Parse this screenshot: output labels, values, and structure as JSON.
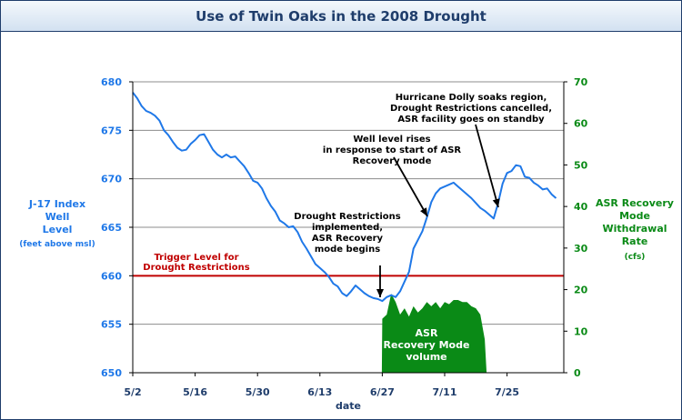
{
  "chart_data": {
    "type": "line",
    "title": "Use of Twin Oaks in the 2008 Drought",
    "xlabel": "date",
    "ylabel_left": [
      "J-17 Index",
      "Well",
      "Level"
    ],
    "ylabel_left_sub": "(feet above msl)",
    "ylabel_right": [
      "ASR Recovery",
      "Mode",
      "Withdrawal",
      "Rate"
    ],
    "ylabel_right_sub": "(cfs)",
    "ylim_left": [
      650,
      680
    ],
    "ylim_right": [
      0,
      70
    ],
    "x_ticks": [
      {
        "day": 0,
        "label": "5/2"
      },
      {
        "day": 14,
        "label": "5/16"
      },
      {
        "day": 28,
        "label": "5/30"
      },
      {
        "day": 42,
        "label": "6/13"
      },
      {
        "day": 56,
        "label": "6/27"
      },
      {
        "day": 70,
        "label": "7/11"
      },
      {
        "day": 84,
        "label": "7/25"
      }
    ],
    "y_ticks_left": [
      650,
      655,
      660,
      665,
      670,
      675,
      680
    ],
    "y_ticks_right": [
      0,
      10,
      20,
      30,
      40,
      50,
      60,
      70
    ],
    "trigger_level": {
      "value": 660,
      "label": [
        "Trigger Level for",
        "Drought Restrictions"
      ],
      "color": "#c00000"
    },
    "well_level": {
      "color": "#1f78e8",
      "points": [
        [
          0,
          678.9
        ],
        [
          1,
          678.3
        ],
        [
          2,
          677.5
        ],
        [
          3,
          677.0
        ],
        [
          4,
          676.8
        ],
        [
          5,
          676.5
        ],
        [
          6,
          676.0
        ],
        [
          7,
          675.0
        ],
        [
          8,
          674.5
        ],
        [
          9,
          673.8
        ],
        [
          10,
          673.2
        ],
        [
          11,
          672.9
        ],
        [
          12,
          673.0
        ],
        [
          13,
          673.6
        ],
        [
          14,
          674.0
        ],
        [
          15,
          674.5
        ],
        [
          16,
          674.6
        ],
        [
          17,
          673.8
        ],
        [
          18,
          673.0
        ],
        [
          19,
          672.5
        ],
        [
          20,
          672.2
        ],
        [
          21,
          672.5
        ],
        [
          22,
          672.2
        ],
        [
          23,
          672.3
        ],
        [
          24,
          671.8
        ],
        [
          25,
          671.3
        ],
        [
          26,
          670.6
        ],
        [
          27,
          669.8
        ],
        [
          28,
          669.6
        ],
        [
          29,
          669.0
        ],
        [
          30,
          668.0
        ],
        [
          31,
          667.2
        ],
        [
          32,
          666.6
        ],
        [
          33,
          665.7
        ],
        [
          34,
          665.4
        ],
        [
          35,
          665.0
        ],
        [
          36,
          665.1
        ],
        [
          37,
          664.5
        ],
        [
          38,
          663.5
        ],
        [
          39,
          662.8
        ],
        [
          40,
          662.0
        ],
        [
          41,
          661.2
        ],
        [
          42,
          660.8
        ],
        [
          43,
          660.4
        ],
        [
          44,
          659.9
        ],
        [
          45,
          659.2
        ],
        [
          46,
          658.9
        ],
        [
          47,
          658.2
        ],
        [
          48,
          657.9
        ],
        [
          49,
          658.4
        ],
        [
          50,
          659.0
        ],
        [
          51,
          658.6
        ],
        [
          52,
          658.2
        ],
        [
          53,
          657.9
        ],
        [
          54,
          657.7
        ],
        [
          55,
          657.6
        ],
        [
          56,
          657.4
        ],
        [
          57,
          657.8
        ],
        [
          58,
          658.0
        ],
        [
          59,
          657.8
        ],
        [
          60,
          658.4
        ],
        [
          61,
          659.4
        ],
        [
          62,
          660.4
        ],
        [
          63,
          662.8
        ],
        [
          64,
          663.7
        ],
        [
          65,
          664.6
        ],
        [
          66,
          666.0
        ],
        [
          67,
          667.6
        ],
        [
          68,
          668.5
        ],
        [
          69,
          669.0
        ],
        [
          70,
          669.2
        ],
        [
          71,
          669.4
        ],
        [
          72,
          669.6
        ],
        [
          73,
          669.2
        ],
        [
          74,
          668.8
        ],
        [
          75,
          668.4
        ],
        [
          76,
          668.0
        ],
        [
          77,
          667.5
        ],
        [
          78,
          667.0
        ],
        [
          79,
          666.7
        ],
        [
          80,
          666.3
        ],
        [
          81,
          665.9
        ],
        [
          82,
          667.5
        ],
        [
          83,
          669.5
        ],
        [
          84,
          670.6
        ],
        [
          85,
          670.8
        ],
        [
          86,
          671.4
        ],
        [
          87,
          671.3
        ],
        [
          88,
          670.2
        ],
        [
          89,
          670.1
        ],
        [
          90,
          669.6
        ],
        [
          91,
          669.3
        ],
        [
          92,
          668.9
        ],
        [
          93,
          669.0
        ],
        [
          94,
          668.4
        ],
        [
          95,
          668.0
        ]
      ]
    },
    "asr_withdrawal": {
      "color": "#0a8a16",
      "label": [
        "ASR",
        "Recovery Mode",
        "volume"
      ],
      "points": [
        [
          55.9,
          0
        ],
        [
          56,
          13
        ],
        [
          57,
          14
        ],
        [
          58,
          19
        ],
        [
          59,
          17
        ],
        [
          60,
          14
        ],
        [
          61,
          15.5
        ],
        [
          62,
          13.5
        ],
        [
          63,
          16
        ],
        [
          64,
          14.5
        ],
        [
          65,
          15.5
        ],
        [
          66,
          17
        ],
        [
          67,
          16
        ],
        [
          68,
          17
        ],
        [
          69,
          15.5
        ],
        [
          70,
          17
        ],
        [
          71,
          16.5
        ],
        [
          72,
          17.5
        ],
        [
          73,
          17.5
        ],
        [
          74,
          17
        ],
        [
          75,
          17
        ],
        [
          76,
          16
        ],
        [
          77,
          15.5
        ],
        [
          78,
          14
        ],
        [
          79,
          8
        ],
        [
          79.4,
          0
        ]
      ]
    },
    "annotations": [
      {
        "lines": [
          "Drought Restrictions",
          "implemented,",
          "ASR Recovery",
          "mode begins"
        ]
      },
      {
        "lines": [
          "Well level rises",
          "in response to start of ASR",
          "Recovery mode"
        ]
      },
      {
        "lines": [
          "Hurricane Dolly soaks region,",
          "Drought Restrictions cancelled,",
          "ASR facility goes on standby"
        ]
      }
    ]
  }
}
